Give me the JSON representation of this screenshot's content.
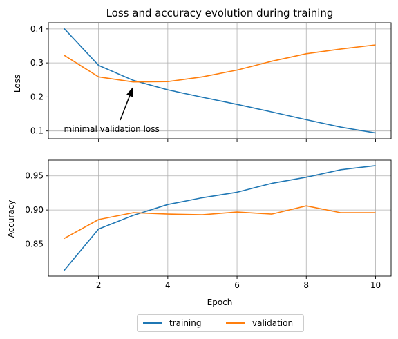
{
  "chart_data": [
    {
      "type": "line",
      "title": "Loss and accuracy evolution during training",
      "xlabel": "",
      "ylabel": "Loss",
      "x": [
        1,
        2,
        3,
        4,
        5,
        6,
        7,
        8,
        9,
        10
      ],
      "xticks": [
        2,
        4,
        6,
        8,
        10
      ],
      "xticklabels_visible": false,
      "xlim": [
        0.55,
        10.45
      ],
      "ylim": [
        0.077,
        0.418
      ],
      "yticks": [
        0.1,
        0.2,
        0.3,
        0.4
      ],
      "ytick_labels": [
        "0.1",
        "0.2",
        "0.3",
        "0.4"
      ],
      "grid": true,
      "series": [
        {
          "name": "training",
          "color": "#1f77b4",
          "values": [
            0.402,
            0.293,
            0.249,
            0.221,
            0.199,
            0.178,
            0.156,
            0.133,
            0.111,
            0.094
          ]
        },
        {
          "name": "validation",
          "color": "#ff7f0e",
          "values": [
            0.323,
            0.259,
            0.244,
            0.245,
            0.259,
            0.279,
            0.305,
            0.327,
            0.341,
            0.353
          ]
        }
      ],
      "annotation": {
        "text": "minimal validation loss",
        "point": [
          3,
          0.244
        ],
        "text_at": [
          1,
          0.105
        ]
      }
    },
    {
      "type": "line",
      "title": "",
      "xlabel": "Epoch",
      "ylabel": "Accuracy",
      "x": [
        1,
        2,
        3,
        4,
        5,
        6,
        7,
        8,
        9,
        10
      ],
      "xticks": [
        2,
        4,
        6,
        8,
        10
      ],
      "xtick_labels": [
        "2",
        "4",
        "6",
        "8",
        "10"
      ],
      "xlim": [
        0.55,
        10.45
      ],
      "ylim": [
        0.803,
        0.973
      ],
      "yticks": [
        0.85,
        0.9,
        0.95
      ],
      "ytick_labels": [
        "0.85",
        "0.90",
        "0.95"
      ],
      "grid": true,
      "series": [
        {
          "name": "training",
          "color": "#1f77b4",
          "values": [
            0.811,
            0.872,
            0.892,
            0.908,
            0.918,
            0.926,
            0.939,
            0.948,
            0.959,
            0.965
          ]
        },
        {
          "name": "validation",
          "color": "#ff7f0e",
          "values": [
            0.858,
            0.886,
            0.896,
            0.894,
            0.893,
            0.897,
            0.894,
            0.906,
            0.896,
            0.896
          ]
        }
      ]
    }
  ],
  "legend": {
    "placement": "bottom-center",
    "entries": [
      {
        "label": "training",
        "color": "#1f77b4"
      },
      {
        "label": "validation",
        "color": "#ff7f0e"
      }
    ]
  }
}
